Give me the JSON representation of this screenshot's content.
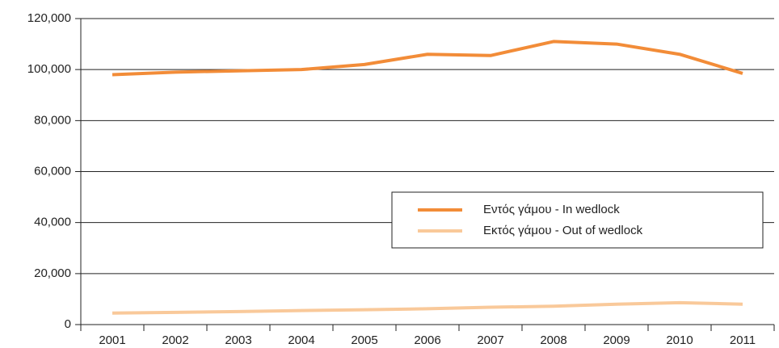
{
  "chart_data": {
    "type": "line",
    "categories": [
      "2001",
      "2002",
      "2003",
      "2004",
      "2005",
      "2006",
      "2007",
      "2008",
      "2009",
      "2010",
      "2011"
    ],
    "series": [
      {
        "name": "Εντός γάμου - In wedlock",
        "color": "#f28c38",
        "values": [
          98000,
          99000,
          99500,
          100000,
          102000,
          106000,
          105500,
          111000,
          110000,
          106000,
          98500
        ]
      },
      {
        "name": "Εκτός γάμου - Out of wedlock",
        "color": "#f9c99a",
        "values": [
          4500,
          4800,
          5100,
          5500,
          5800,
          6200,
          6800,
          7200,
          8000,
          8600,
          8000
        ]
      }
    ],
    "ylim": [
      0,
      120000
    ],
    "yticks": [
      0,
      {
        "value": 20000,
        "label": "20,000"
      },
      {
        "value": 40000,
        "label": "40,000"
      },
      {
        "value": 60000,
        "label": "60,000"
      },
      {
        "value": 80000,
        "label": "80,000"
      },
      {
        "value": 100000,
        "label": "100,000"
      },
      {
        "value": 120000,
        "label": "120,000"
      }
    ],
    "grid": true,
    "legend": "center-right"
  }
}
